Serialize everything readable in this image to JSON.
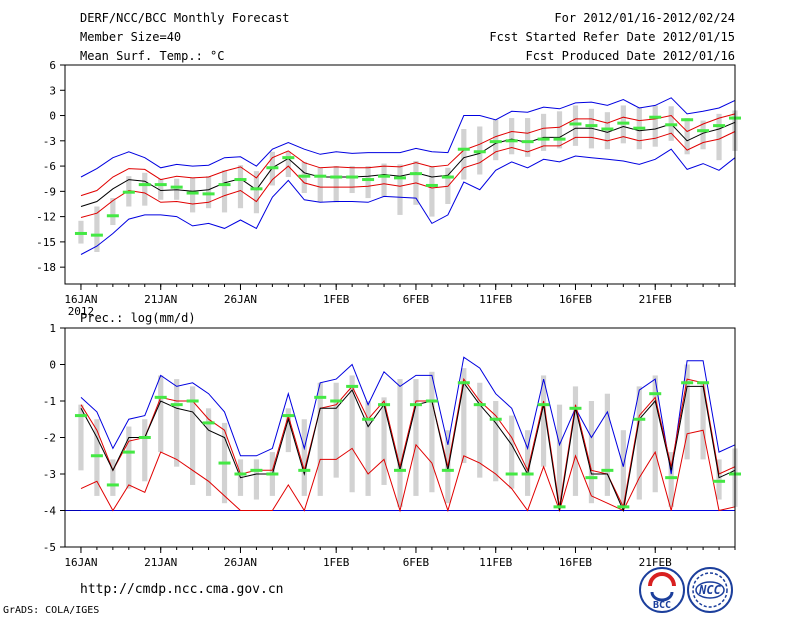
{
  "header": {
    "title": "DERF/NCC/BCC Monthly Forecast",
    "member_size": "Member Size=40",
    "variable": "Mean Surf. Temp.: °C",
    "period": "For 2012/01/16-2012/02/24",
    "start_date": "Fcst Started Refer Date 2012/01/15",
    "produced_date": "Fcst Produced Date 2012/01/16"
  },
  "footer": {
    "url": "http://cmdp.ncc.cma.gov.cn",
    "grads": "GrADS: COLA/IGES",
    "logo_bcc": "BCC",
    "logo_ncc": "NCC"
  },
  "colors": {
    "box": "#d2d2d2",
    "median": "#44e844",
    "mean": "#000000",
    "spread": "#e00000",
    "extreme": "#0000e0",
    "threshold": "#0000b0"
  },
  "chart_data": [
    {
      "type": "box-line",
      "title": "Mean Surf. Temp.: °C",
      "days": 40,
      "ylim": [
        -20,
        6
      ],
      "yticks": [
        6,
        3,
        0,
        -3,
        -6,
        -9,
        -12,
        -15,
        -18
      ],
      "xticks": [
        {
          "day": 0,
          "label": "16JAN",
          "sub": "2012"
        },
        {
          "day": 5,
          "label": "21JAN"
        },
        {
          "day": 10,
          "label": "26JAN"
        },
        {
          "day": 16,
          "label": "1FEB"
        },
        {
          "day": 21,
          "label": "6FEB"
        },
        {
          "day": 26,
          "label": "11FEB"
        },
        {
          "day": 31,
          "label": "16FEB"
        },
        {
          "day": 36,
          "label": "21FEB"
        }
      ],
      "series": {
        "max": [
          -7.3,
          -6.3,
          -5,
          -4.3,
          -5,
          -6.2,
          -5.8,
          -6,
          -5.9,
          -5,
          -4.9,
          -6,
          -4,
          -3.2,
          -4,
          -4.6,
          -4.3,
          -4.5,
          -4.4,
          -4.4,
          -4.4,
          -3.9,
          -4.3,
          -4.4,
          0,
          0,
          -0.5,
          0.5,
          0.4,
          1,
          0.8,
          1.5,
          1.6,
          1.2,
          1.9,
          0.9,
          1.2,
          2.1,
          0.2,
          0.5,
          0.9,
          1.8
        ],
        "upper": [
          -9.5,
          -8.9,
          -7.3,
          -6.3,
          -6.4,
          -7.6,
          -7.2,
          -7.4,
          -7.3,
          -6.6,
          -6.1,
          -7.4,
          -5,
          -4.2,
          -5.6,
          -6.2,
          -6.1,
          -6.2,
          -6.2,
          -6,
          -6.1,
          -5.6,
          -6.1,
          -5.9,
          -4.1,
          -3.4,
          -2.5,
          -1.9,
          -2.1,
          -1.5,
          -1.4,
          -0.4,
          -0.4,
          -0.9,
          -0.2,
          -0.6,
          -0.4,
          0,
          -1.9,
          -1,
          -0.3,
          0.2
        ],
        "mean": [
          -10.8,
          -10.2,
          -8.7,
          -7.6,
          -7.8,
          -8.9,
          -8.8,
          -9,
          -8.8,
          -8,
          -7.5,
          -8.8,
          -6.2,
          -5.1,
          -6.8,
          -7.3,
          -7.3,
          -7.3,
          -7.2,
          -7,
          -7.2,
          -6.8,
          -7.3,
          -7.1,
          -5,
          -4.5,
          -3.3,
          -2.8,
          -3.2,
          -2.6,
          -2.6,
          -1.5,
          -1.5,
          -2,
          -1.3,
          -1.8,
          -1.6,
          -1,
          -3,
          -2.1,
          -1.6,
          -0.8
        ],
        "lower": [
          -12.1,
          -11.6,
          -10.1,
          -8.9,
          -9.2,
          -10.3,
          -10.2,
          -10.5,
          -10.3,
          -9.5,
          -8.9,
          -10.2,
          -7.6,
          -6,
          -8,
          -8.5,
          -8.5,
          -8.5,
          -8.4,
          -8.1,
          -8.4,
          -8,
          -8.6,
          -8.4,
          -6.2,
          -5.6,
          -4.3,
          -3.8,
          -4.3,
          -3.6,
          -3.6,
          -2.6,
          -2.6,
          -3,
          -2.5,
          -3,
          -2.7,
          -2.1,
          -4.1,
          -3.2,
          -2.8,
          -1.9
        ],
        "min": [
          -16.5,
          -15.5,
          -14,
          -12.3,
          -11.8,
          -11.8,
          -12,
          -13.1,
          -12.8,
          -13.4,
          -12.4,
          -13.4,
          -9.7,
          -7.7,
          -10,
          -10.3,
          -10.2,
          -10.2,
          -10.3,
          -9.6,
          -9.7,
          -9.8,
          -12.8,
          -11.8,
          -7.9,
          -8.8,
          -6.5,
          -5.5,
          -6.2,
          -5.2,
          -5.5,
          -4.8,
          -5,
          -5.2,
          -5.4,
          -5.8,
          -5.2,
          -4,
          -6.4,
          -5.7,
          -6.5,
          -5
        ],
        "box_top": [
          -12.5,
          -10.8,
          -9.8,
          -7.2,
          -6.8,
          -7.5,
          -7.5,
          -7.4,
          -7.2,
          -6.5,
          -5.9,
          -6.6,
          -4.3,
          -4.3,
          -5.5,
          -6.2,
          -6,
          -6,
          -6,
          -5.7,
          -5.8,
          -5.4,
          -6,
          -6.2,
          -1.6,
          -1.3,
          -0.5,
          -0.3,
          -0.3,
          0.2,
          0.5,
          1.2,
          0.8,
          0.4,
          1.2,
          1,
          1.2,
          1.1,
          -0.3,
          -0.6,
          0.2,
          0.6
        ],
        "box_bottom": [
          -15.2,
          -16.2,
          -13,
          -10.8,
          -10.7,
          -10,
          -10,
          -11.5,
          -11,
          -11.5,
          -11,
          -11.6,
          -8.3,
          -7.3,
          -9.2,
          -10.3,
          -10.3,
          -9.2,
          -9.8,
          -9.6,
          -11.8,
          -10.6,
          -12,
          -10.5,
          -7.6,
          -7,
          -5.3,
          -4.6,
          -4.9,
          -4.2,
          -3.9,
          -3.6,
          -3.9,
          -4,
          -3.3,
          -4,
          -3.7,
          -3,
          -4.6,
          -4,
          -5.3,
          -4.2
        ],
        "median": [
          -14,
          -14.2,
          -11.9,
          -9.1,
          -8.2,
          -8.2,
          -8.5,
          -9.2,
          -9.3,
          -8.2,
          -7.6,
          -8.7,
          -6.2,
          -5,
          -7.2,
          -7.2,
          -7.3,
          -7.3,
          -7.6,
          -7.2,
          -7.4,
          -6.9,
          -8.3,
          -7.3,
          -4,
          -4.3,
          -3.1,
          -3,
          -3.1,
          -2.8,
          -2.8,
          -1,
          -1.2,
          -1.6,
          -0.9,
          -1.5,
          -0.2,
          -1.1,
          -0.5,
          -1.8,
          -1.2,
          -0.3
        ]
      }
    },
    {
      "type": "box-line",
      "title": "Prec.: log(mm/d)",
      "days": 40,
      "ylim": [
        -5,
        1
      ],
      "yticks": [
        1,
        0,
        -1,
        -2,
        -3,
        -4,
        -5
      ],
      "threshold": -4,
      "xticks": [
        {
          "day": 0,
          "label": "16JAN",
          "sub": "2012"
        },
        {
          "day": 5,
          "label": "21JAN"
        },
        {
          "day": 10,
          "label": "26JAN"
        },
        {
          "day": 16,
          "label": "1FEB"
        },
        {
          "day": 21,
          "label": "6FEB"
        },
        {
          "day": 26,
          "label": "11FEB"
        },
        {
          "day": 31,
          "label": "16FEB"
        },
        {
          "day": 36,
          "label": "21FEB"
        }
      ],
      "series": {
        "max": [
          -0.9,
          -1.3,
          -2.3,
          -1.5,
          -1.4,
          -0.3,
          -0.6,
          -0.5,
          -0.8,
          -1.3,
          -2.5,
          -2.5,
          -2.3,
          -0.8,
          -2.3,
          -0.5,
          -0.4,
          0,
          -1.1,
          -0.2,
          -0.6,
          -0.3,
          -0.3,
          -2.2,
          0.2,
          -0.1,
          -0.8,
          -1.2,
          -2.3,
          -0.4,
          -2.2,
          -1.2,
          -2,
          -1.3,
          -2.8,
          -0.7,
          -0.4,
          -3,
          0.1,
          0.1,
          -2.4,
          -2.2
        ],
        "upper": [
          -1.1,
          -1.8,
          -2.9,
          -2.1,
          -2,
          -0.9,
          -1,
          -1,
          -1.5,
          -1.8,
          -3,
          -2.9,
          -2.9,
          -1.4,
          -2.9,
          -1.2,
          -1.1,
          -0.6,
          -1.5,
          -1,
          -2.8,
          -1,
          -1,
          -2.8,
          -0.4,
          -1,
          -1.4,
          -2,
          -2.9,
          -1,
          -3.9,
          -1.1,
          -2.9,
          -3,
          -3.9,
          -1.4,
          -0.9,
          -2.8,
          -0.4,
          -0.5,
          -3,
          -2.8
        ],
        "mean": [
          -1.2,
          -2,
          -2.9,
          -2,
          -2,
          -1,
          -1.2,
          -1.3,
          -1.8,
          -2,
          -3.1,
          -3,
          -3,
          -1.5,
          -3,
          -1.2,
          -1.2,
          -0.7,
          -1.7,
          -1.1,
          -2.9,
          -1.1,
          -1,
          -2.9,
          -0.5,
          -1.1,
          -1.6,
          -2.2,
          -3,
          -1.1,
          -4,
          -1.2,
          -3,
          -3,
          -4,
          -1.5,
          -1,
          -2.9,
          -0.6,
          -0.6,
          -3.1,
          -2.9
        ],
        "lower": [
          -3.4,
          -3.2,
          -4,
          -3.3,
          -3.5,
          -2.4,
          -2.6,
          -2.9,
          -3.2,
          -3.6,
          -4,
          -4,
          -4,
          -3.3,
          -4,
          -2.6,
          -2.6,
          -2.3,
          -3,
          -2.6,
          -4,
          -2.2,
          -2.7,
          -4,
          -2.5,
          -2.7,
          -3,
          -3.4,
          -4,
          -2.8,
          -4,
          -2.5,
          -3.6,
          -3.8,
          -4,
          -3.1,
          -2.4,
          -4,
          -1.9,
          -1.8,
          -4,
          -3.9
        ],
        "min": [
          -4,
          -4,
          -4,
          -4,
          -4,
          -4,
          -4,
          -4,
          -4,
          -4,
          -4,
          -4,
          -4,
          -4,
          -4,
          -4,
          -4,
          -4,
          -4,
          -4,
          -4,
          -4,
          -4,
          -4,
          -4,
          -4,
          -4,
          -4,
          -4,
          -4,
          -4,
          -4,
          -4,
          -4,
          -4,
          -4,
          -4,
          -4,
          -4,
          -4,
          -4,
          -4
        ],
        "box_top": [
          -1.1,
          -1.5,
          -2.6,
          -1.7,
          -1.5,
          -0.3,
          -0.4,
          -0.6,
          -1.2,
          -1.6,
          -2.6,
          -2.6,
          -2.4,
          -1.2,
          -1.5,
          -0.5,
          -0.5,
          -0.3,
          -1,
          -0.9,
          -0.4,
          -0.4,
          -0.2,
          -1.8,
          -0.1,
          -0.5,
          -1,
          -1.4,
          -1.8,
          -0.3,
          -1.1,
          -0.6,
          -1,
          -0.8,
          -1.8,
          -0.6,
          -0.3,
          -2.4,
          0,
          -0.5,
          -2.6,
          -2.3
        ],
        "box_bottom": [
          -2.9,
          -3.6,
          -3.6,
          -3.4,
          -3.2,
          -2.4,
          -2.8,
          -3.3,
          -3.6,
          -3.8,
          -3.6,
          -3.7,
          -3.6,
          -2.4,
          -3.6,
          -3.6,
          -3.1,
          -3.5,
          -3.6,
          -3.3,
          -3.9,
          -3.6,
          -3.5,
          -3.8,
          -2.7,
          -3.1,
          -3.2,
          -3.4,
          -3.6,
          -2.8,
          -3.7,
          -3.6,
          -3.8,
          -3.6,
          -3.9,
          -3.7,
          -3.5,
          -3.9,
          -2.6,
          -2.6,
          -3.7,
          -3.9
        ],
        "median": [
          -1.4,
          -2.5,
          -3.3,
          -2.4,
          -2,
          -0.9,
          -1.1,
          -1,
          -1.6,
          -2.7,
          -3,
          -2.9,
          -3,
          -1.4,
          -2.9,
          -0.9,
          -1,
          -0.6,
          -1.5,
          -1.1,
          -2.9,
          -1.1,
          -1,
          -2.9,
          -0.5,
          -1.1,
          -1.5,
          -3,
          -3,
          -1.1,
          -3.9,
          -1.2,
          -3.1,
          -2.9,
          -3.9,
          -1.5,
          -0.8,
          -3.1,
          -0.5,
          -0.5,
          -3.2,
          -3
        ]
      }
    }
  ]
}
